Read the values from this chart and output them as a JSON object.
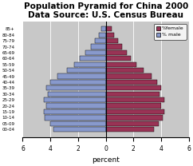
{
  "title": "Population Pyramid for China 2000\nData Source: U.S. Census Bureau",
  "xlabel": "percent",
  "age_groups": [
    "00-04",
    "05-09",
    "10-14",
    "15-19",
    "20-24",
    "25-29",
    "30-34",
    "35-39",
    "40-44",
    "45-49",
    "50-54",
    "55-59",
    "60-64",
    "65-69",
    "70-74",
    "75-79",
    "80-84",
    "85+"
  ],
  "male": [
    3.8,
    4.0,
    4.4,
    4.5,
    4.3,
    4.5,
    4.2,
    4.3,
    4.0,
    3.5,
    2.8,
    2.3,
    1.9,
    1.5,
    1.1,
    0.8,
    0.5,
    0.3
  ],
  "female": [
    3.5,
    3.8,
    4.1,
    4.2,
    4.0,
    4.2,
    3.9,
    4.0,
    3.7,
    3.3,
    2.7,
    2.2,
    1.8,
    1.5,
    1.2,
    0.9,
    0.6,
    0.4
  ],
  "male_color": "#8899CC",
  "female_color": "#993355",
  "bg_color": "#C8C8C8",
  "xlim": 6,
  "title_fontsize": 7.5,
  "legend_female": "%female",
  "legend_male": "% male"
}
